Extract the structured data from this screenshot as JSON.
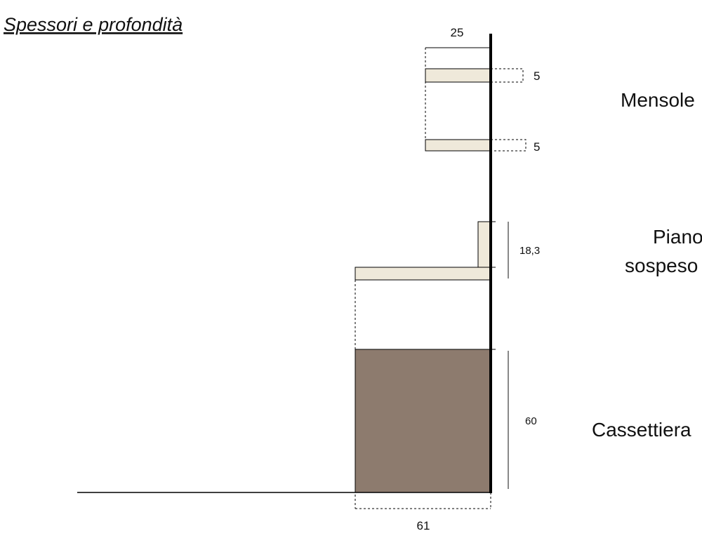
{
  "title": "Spessori e profondità",
  "dimensions": {
    "top_depth": "25",
    "shelf_1": "5",
    "shelf_2": "5",
    "piano": "18,3",
    "cassettiera": "60",
    "bottom_depth": "61"
  },
  "labels": {
    "mensole": "Mensole",
    "piano_1": "Piano",
    "piano_2": "sospeso",
    "cassettiera": "Cassettiera"
  }
}
